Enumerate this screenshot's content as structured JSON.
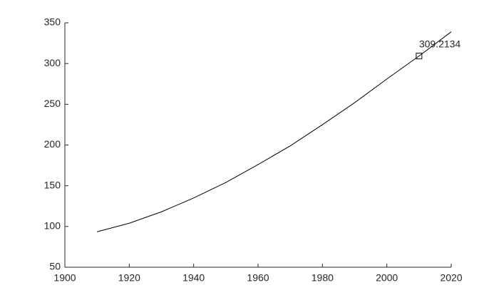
{
  "chart_data": {
    "type": "line",
    "x": [
      1910,
      1920,
      1930,
      1940,
      1950,
      1960,
      1970,
      1980,
      1990,
      2000,
      2010,
      2020
    ],
    "series": [
      {
        "color": "#000000",
        "values": [
          93.5,
          104,
          118,
          135,
          154,
          176,
          199,
          225,
          252,
          281,
          309.2134,
          339
        ]
      }
    ],
    "marker": {
      "x": 2010,
      "value": 309.2134,
      "color": "#000000"
    },
    "xlim": [
      1900,
      2020
    ],
    "xticks": [
      1900,
      1920,
      1940,
      1960,
      1980,
      2000,
      2020
    ],
    "ylim": [
      50,
      350
    ],
    "yticks": [
      50,
      100,
      150,
      200,
      250,
      300,
      350
    ],
    "grid": false
  }
}
